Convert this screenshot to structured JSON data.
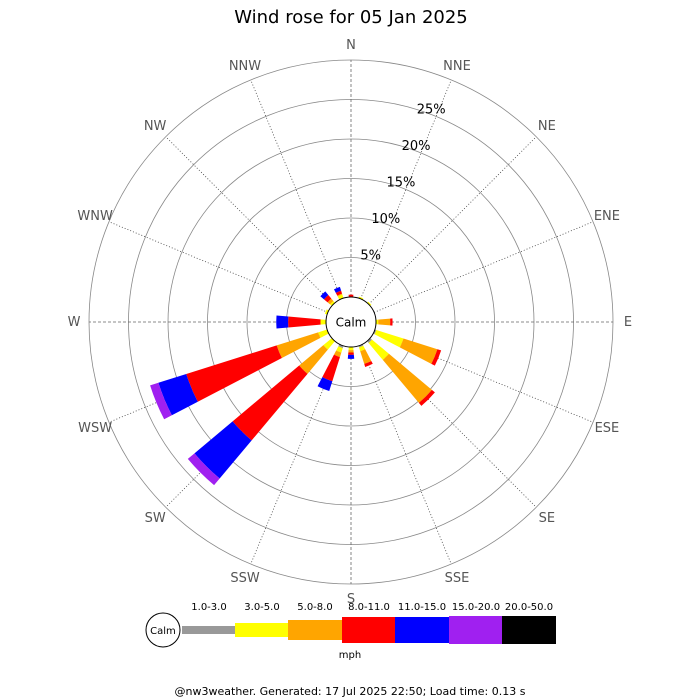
{
  "chart_data": {
    "type": "wind-rose",
    "title": "Wind rose for 05 Jan 2025",
    "center_label": "Calm",
    "directions": [
      "N",
      "NNE",
      "NE",
      "ENE",
      "E",
      "ESE",
      "SE",
      "SSE",
      "S",
      "SSW",
      "SW",
      "WSW",
      "W",
      "WNW",
      "NW",
      "NNW"
    ],
    "radial_ticks": [
      "5%",
      "10%",
      "15%",
      "20%",
      "25%"
    ],
    "radial_values": [
      5,
      10,
      15,
      20,
      25
    ],
    "r_max": 30,
    "speed_bins": [
      {
        "label": "1.0-3.0",
        "color": "#999999"
      },
      {
        "label": "3.0-5.0",
        "color": "#ffff00"
      },
      {
        "label": "5.0-8.0",
        "color": "#ffa500"
      },
      {
        "label": "8.0-11.0",
        "color": "#ff0000"
      },
      {
        "label": "11.0-15.0",
        "color": "#0000ff"
      },
      {
        "label": "15.0-20.0",
        "color": "#a020f0"
      },
      {
        "label": "20.0-50.0",
        "color": "#000000"
      }
    ],
    "legend_calm_label": "Calm",
    "unit_label": "mph",
    "series_by_direction": [
      {
        "dir": "N",
        "values": [
          0,
          0,
          0,
          0.3,
          0,
          0,
          0
        ]
      },
      {
        "dir": "NNE",
        "values": [
          0,
          0.2,
          0,
          0,
          0,
          0,
          0
        ]
      },
      {
        "dir": "NE",
        "values": [
          0,
          0.2,
          0,
          0,
          0,
          0,
          0
        ]
      },
      {
        "dir": "ENE",
        "values": [
          0,
          0,
          0,
          0,
          0,
          0,
          0
        ]
      },
      {
        "dir": "E",
        "values": [
          0,
          0.3,
          1.5,
          0.3,
          0,
          0,
          0
        ]
      },
      {
        "dir": "ESE",
        "values": [
          0.2,
          3.6,
          4.5,
          0.5,
          0,
          0,
          0
        ]
      },
      {
        "dir": "SE",
        "values": [
          0.3,
          2.8,
          7.1,
          0.5,
          0,
          0,
          0
        ]
      },
      {
        "dir": "SSE",
        "values": [
          0.2,
          0.5,
          1.7,
          0.4,
          0,
          0,
          0
        ]
      },
      {
        "dir": "S",
        "values": [
          0,
          0.4,
          0.3,
          0.3,
          0.5,
          0,
          0
        ]
      },
      {
        "dir": "SSW",
        "values": [
          0.3,
          0.6,
          0.6,
          3.2,
          1.3,
          0,
          0
        ]
      },
      {
        "dir": "SW",
        "values": [
          0,
          1.4,
          4.0,
          11.0,
          6.3,
          1.1,
          0
        ]
      },
      {
        "dir": "WSW",
        "values": [
          0,
          1.2,
          5.5,
          12.0,
          3.7,
          1.1,
          0
        ]
      },
      {
        "dir": "W",
        "values": [
          0,
          0.7,
          0,
          4.1,
          1.5,
          0,
          0
        ]
      },
      {
        "dir": "WNW",
        "values": [
          0,
          0.3,
          0,
          0,
          0,
          0,
          0
        ]
      },
      {
        "dir": "NW",
        "values": [
          0,
          0.3,
          0.4,
          0.6,
          0.6,
          0,
          0
        ]
      },
      {
        "dir": "NNW",
        "values": [
          0,
          0.5,
          0.1,
          0.4,
          0.5,
          0,
          0
        ]
      }
    ]
  },
  "footer": "@nw3weather. Generated: 17 Jul 2025 22:50; Load time: 0.13 s"
}
